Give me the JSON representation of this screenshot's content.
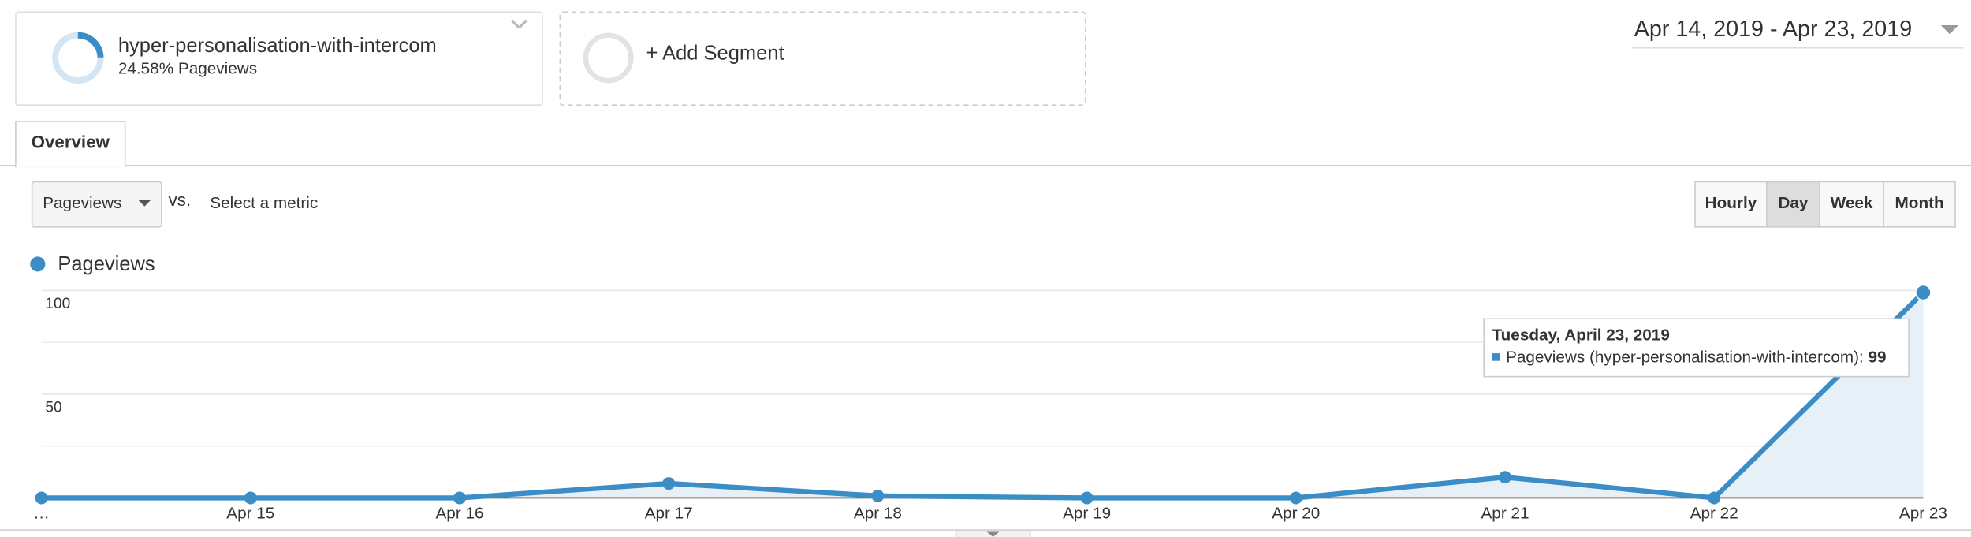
{
  "segment": {
    "name": "hyper-personalisation-with-intercom",
    "share": "24.58% Pageviews",
    "add": "+ Add Segment"
  },
  "date_range": "Apr 14, 2019 - Apr 23, 2019",
  "tabs": [
    "Overview"
  ],
  "metric_selector": {
    "metric": "Pageviews",
    "vs": "vs.",
    "select_metric": "Select a metric"
  },
  "granularity": {
    "options": [
      "Hourly",
      "Day",
      "Week",
      "Month"
    ],
    "active": "Day"
  },
  "chart_data": {
    "type": "line",
    "categories": [
      "…",
      "Apr 15",
      "Apr 16",
      "Apr 17",
      "Apr 18",
      "Apr 19",
      "Apr 20",
      "Apr 21",
      "Apr 22",
      "Apr 23"
    ],
    "series": [
      {
        "name": "Pageviews",
        "color": "#3b8dc5",
        "values": [
          0,
          0,
          0,
          7,
          1,
          0,
          0,
          10,
          0,
          99
        ]
      }
    ],
    "ylim": [
      0,
      100
    ],
    "yticks": [
      50,
      100
    ],
    "grid": true,
    "tooltip": {
      "title": "Tuesday, April 23, 2019",
      "label": "Pageviews (hyper-personalisation-with-intercom): "
    }
  }
}
